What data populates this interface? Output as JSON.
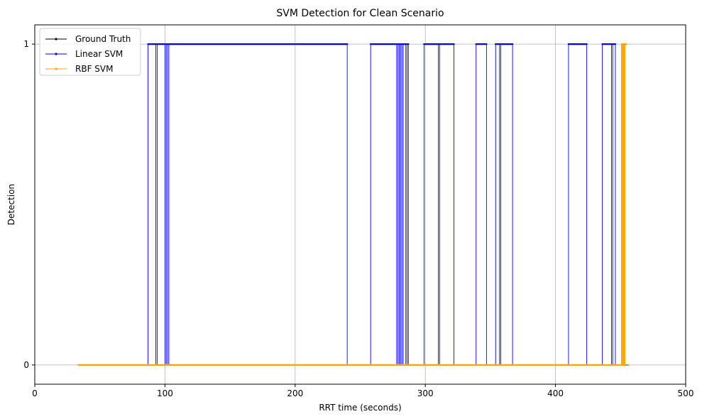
{
  "chart_data": {
    "type": "line",
    "title": "SVM Detection for Clean Scenario",
    "xlabel": "RRT time (seconds)",
    "ylabel": "Detection",
    "xlim": [
      0,
      500
    ],
    "ylim": [
      -0.06,
      1.06
    ],
    "xticks": [
      0,
      100,
      200,
      300,
      400,
      500
    ],
    "xtick_labels": [
      "0",
      "100",
      "200",
      "300",
      "400",
      "500"
    ],
    "yticks": [
      0,
      1
    ],
    "ytick_labels": [
      "0",
      "1"
    ],
    "grid": true,
    "legend_position": "top-left",
    "step": true,
    "series": [
      {
        "name": "Ground Truth",
        "color": "#000000",
        "segments": [
          {
            "x": [
              33,
              452
            ],
            "y": [
              0,
              0
            ]
          },
          {
            "x": [
              452,
              454.5
            ],
            "y": [
              0,
              0
            ]
          }
        ]
      },
      {
        "name": "Linear SVM",
        "color": "#0000ff",
        "segments": [
          {
            "x": [
              33,
              87,
              87,
              93,
              93,
              94,
              94,
              100,
              100,
              101,
              101,
              102,
              102,
              103,
              103,
              240,
              240,
              258,
              258,
              278,
              278,
              279,
              279,
              280,
              280,
              281,
              281,
              282,
              282,
              283,
              283,
              285,
              285,
              286,
              286,
              287,
              287,
              299,
              299,
              310,
              310,
              311,
              311,
              322,
              322,
              339,
              339,
              347,
              347,
              354,
              354,
              357,
              357,
              358,
              358,
              367,
              367,
              410,
              410,
              424,
              424,
              436,
              436,
              443,
              443,
              444,
              444,
              446,
              446,
              456.5
            ],
            "y": [
              0,
              0,
              1,
              1,
              0,
              0,
              1,
              1,
              0,
              0,
              1,
              1,
              0,
              0,
              1,
              1,
              0,
              0,
              1,
              1,
              0,
              0,
              1,
              1,
              0,
              0,
              1,
              1,
              0,
              0,
              1,
              1,
              0,
              0,
              1,
              1,
              0,
              0,
              1,
              1,
              0,
              0,
              1,
              1,
              0,
              0,
              1,
              1,
              0,
              0,
              1,
              1,
              0,
              0,
              1,
              1,
              0,
              0,
              1,
              1,
              0,
              0,
              1,
              1,
              0,
              0,
              1,
              1,
              0,
              0
            ]
          }
        ]
      },
      {
        "name": "RBF SVM",
        "color": "#ffa500",
        "segments": [
          {
            "x": [
              33,
              451,
              451,
              452,
              452,
              453,
              453,
              455
            ],
            "y": [
              0,
              0,
              1,
              1,
              0,
              0,
              1,
              1
            ]
          },
          {
            "x": [
              455,
              456
            ],
            "y": [
              0,
              0
            ]
          }
        ]
      }
    ]
  }
}
